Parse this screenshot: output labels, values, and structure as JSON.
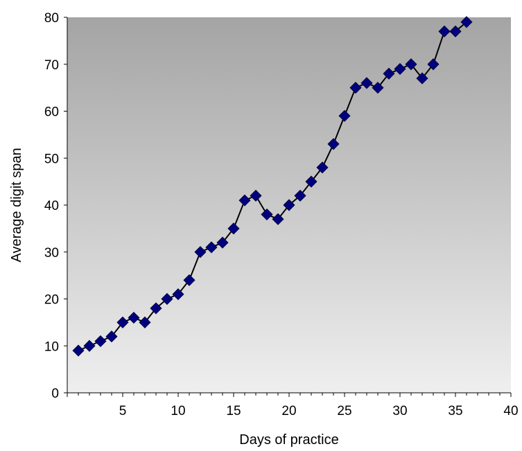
{
  "chart_data": {
    "type": "line",
    "xlabel": "Days of practice",
    "ylabel": "Average digit span",
    "xlim": [
      0,
      40
    ],
    "ylim": [
      0,
      80
    ],
    "x_ticks": [
      5,
      10,
      15,
      20,
      25,
      30,
      35,
      40
    ],
    "y_ticks": [
      0,
      10,
      20,
      30,
      40,
      50,
      60,
      70,
      80
    ],
    "grid": false,
    "legend": "none",
    "background": "gradient gray (dark top, light bottom)",
    "series": [
      {
        "color": "#00007f",
        "line_color": "#000000",
        "marker": "diamond",
        "x": [
          1,
          2,
          3,
          4,
          5,
          6,
          7,
          8,
          9,
          10,
          11,
          12,
          13,
          14,
          15,
          16,
          17,
          18,
          19,
          20,
          21,
          22,
          23,
          24,
          25,
          26,
          27,
          28,
          29,
          30,
          31,
          32,
          33,
          34,
          35,
          36
        ],
        "y": [
          9,
          10,
          11,
          12,
          15,
          16,
          15,
          18,
          20,
          21,
          24,
          30,
          31,
          32,
          35,
          41,
          42,
          38,
          37,
          40,
          42,
          45,
          48,
          53,
          59,
          65,
          66,
          65,
          68,
          69,
          70,
          67,
          70,
          77,
          77,
          79
        ]
      }
    ]
  }
}
